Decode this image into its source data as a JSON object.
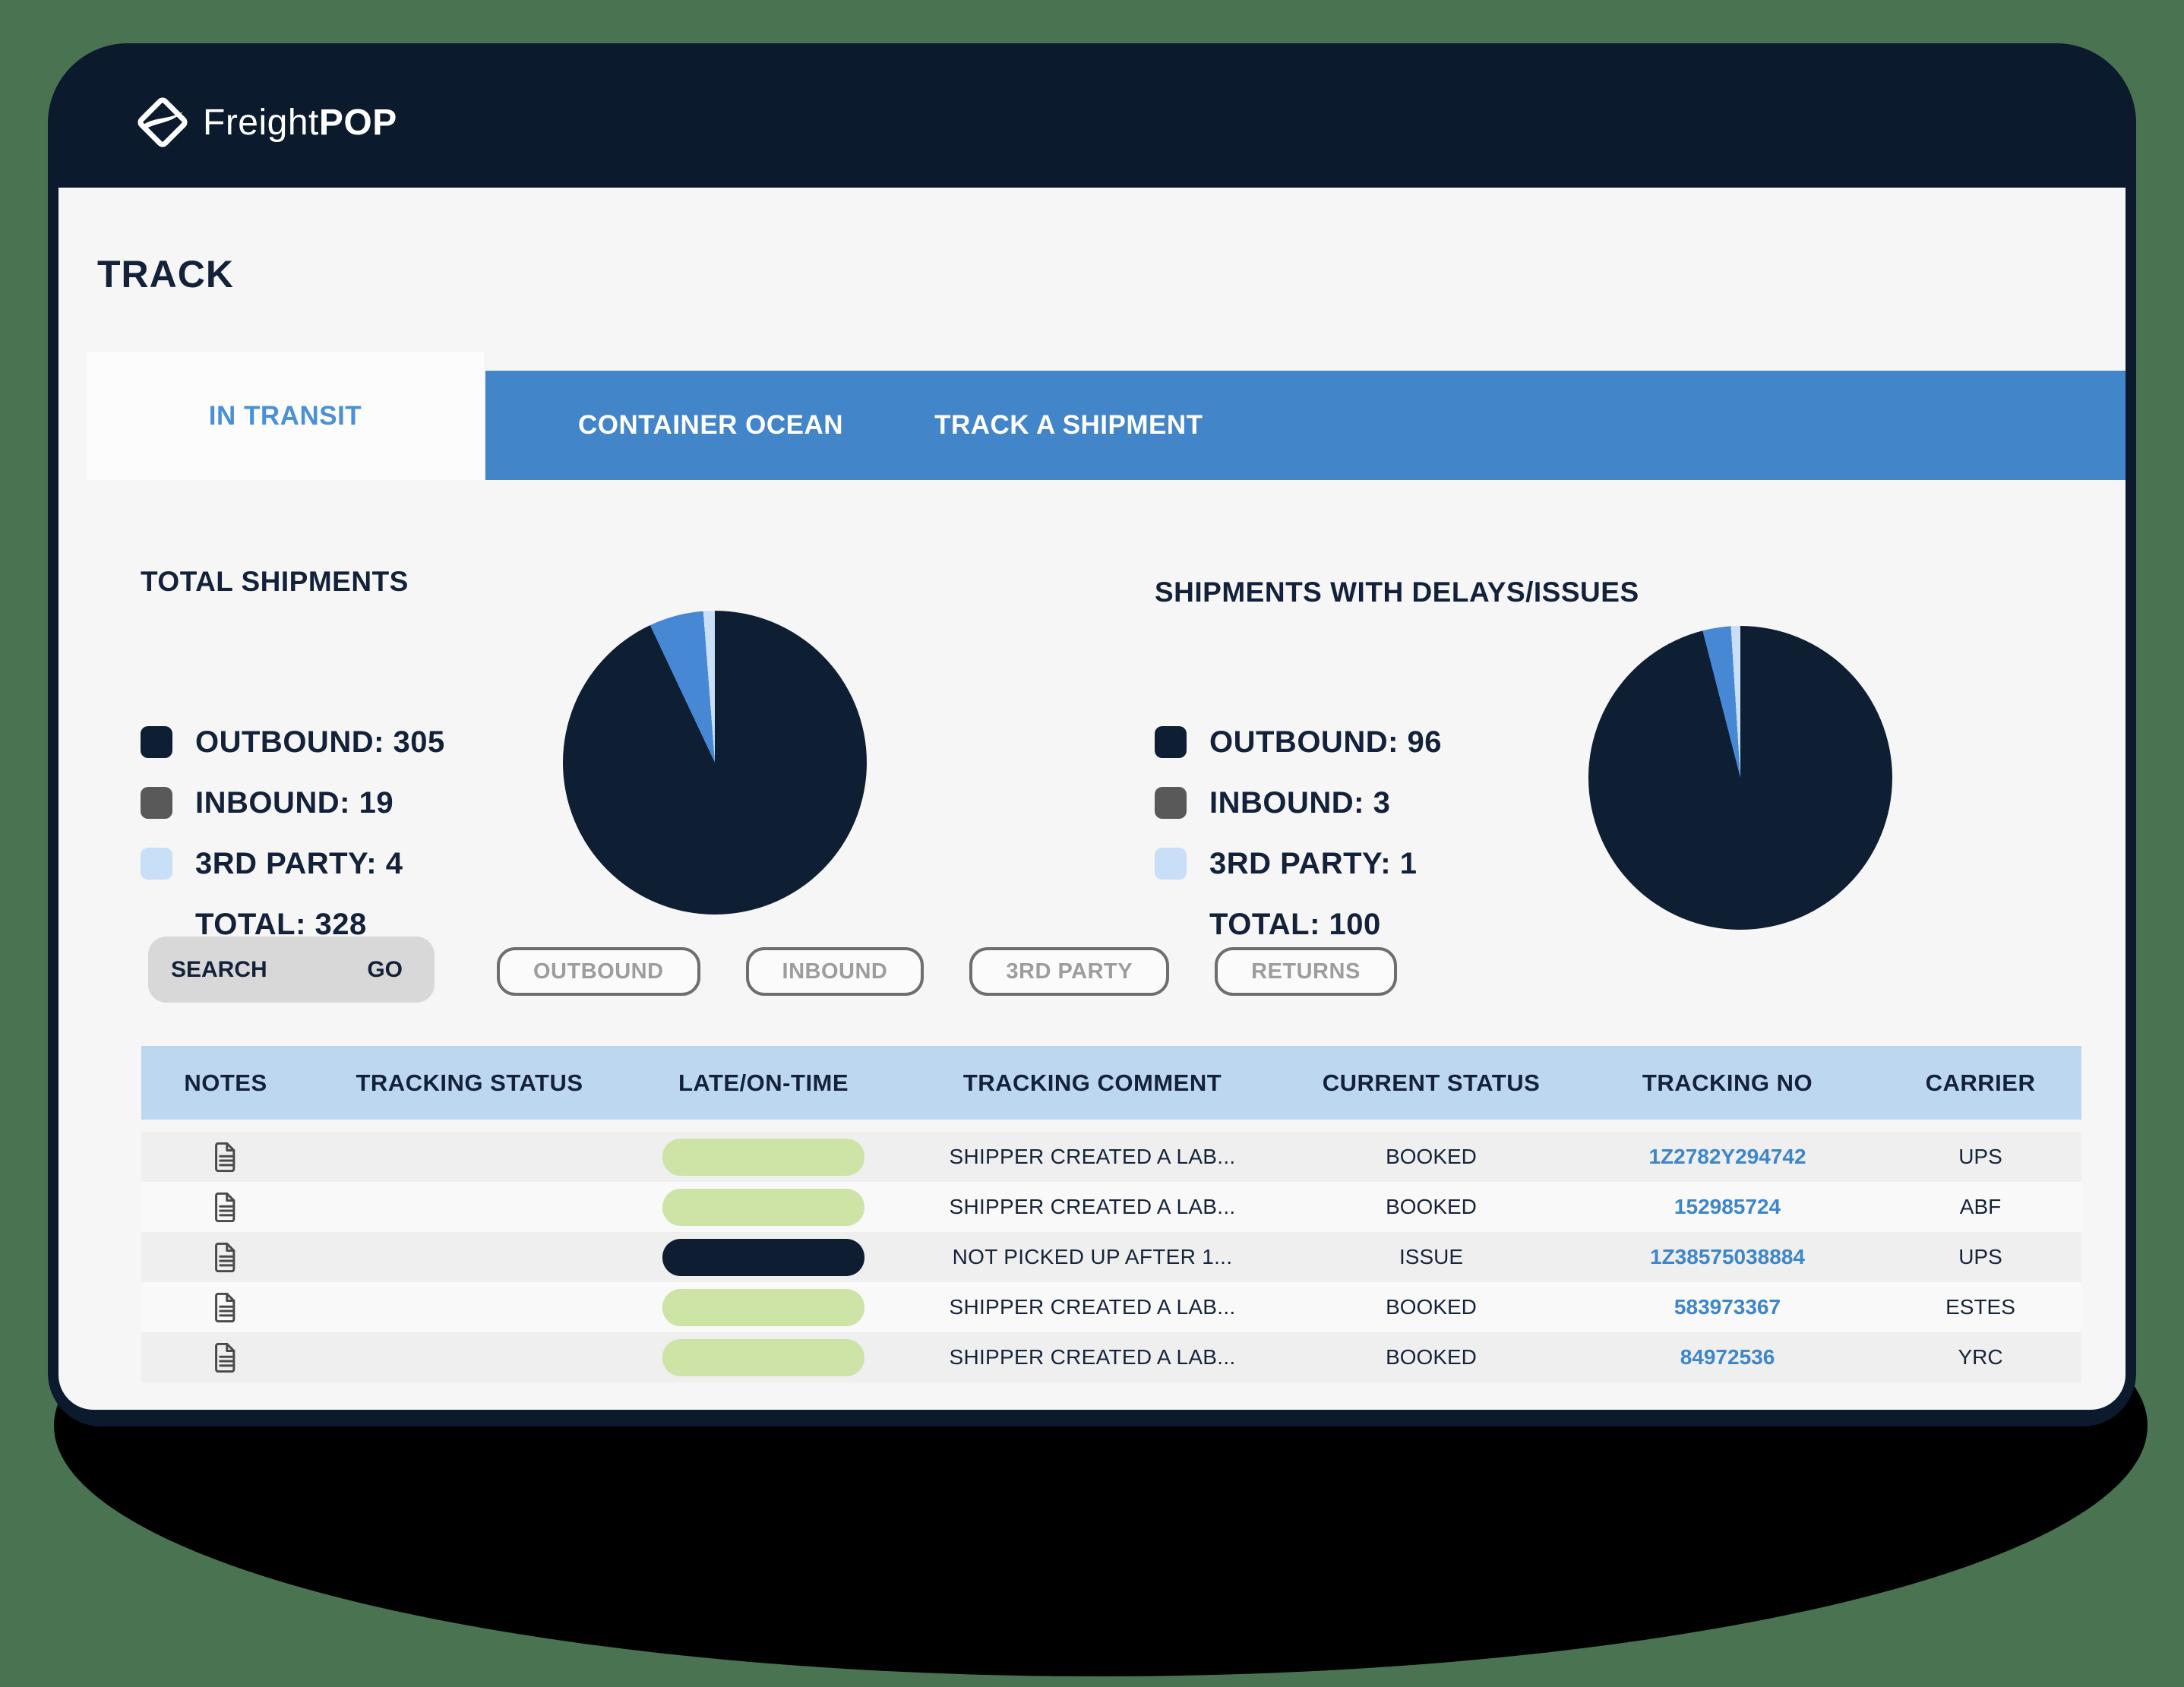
{
  "brand": {
    "logo_light": "Freight",
    "logo_bold": "POP"
  },
  "page_title": "TRACK",
  "tabs": {
    "in_transit": "IN TRANSIT",
    "container_ocean": "CONTAINER OCEAN",
    "track_a_shipment": "TRACK A SHIPMENT"
  },
  "colors": {
    "background_green": "#4a7351",
    "card_navy": "#0b1a2d",
    "tab_bar_blue": "#4285c8",
    "active_tab_text": "#4a90d9",
    "table_header_blue": "#bdd7f1",
    "link_blue": "#3e86c9",
    "ontime_green": "#cde4a6",
    "late_navy": "#0e1d31"
  },
  "chart_data": [
    {
      "type": "pie",
      "title": "TOTAL SHIPMENTS",
      "categories": [
        "OUTBOUND",
        "INBOUND",
        "3RD PARTY"
      ],
      "values": [
        305,
        19,
        4
      ],
      "total_label": "TOTAL",
      "total": 328,
      "slice_colors": [
        "#0f1f33",
        "#4788d4",
        "#c9def7"
      ],
      "legend_swatch_colors": [
        "#0f1f33",
        "#595959",
        "#c9def7"
      ],
      "legend_position": "left-of-pie"
    },
    {
      "type": "pie",
      "title": "SHIPMENTS WITH DELAYS/ISSUES",
      "categories": [
        "OUTBOUND",
        "INBOUND",
        "3RD PARTY"
      ],
      "values": [
        96,
        3,
        1
      ],
      "total_label": "TOTAL",
      "total": 100,
      "slice_colors": [
        "#0f1f33",
        "#4788d4",
        "#c9def7"
      ],
      "legend_swatch_colors": [
        "#0f1f33",
        "#595959",
        "#c9def7"
      ],
      "legend_position": "left-of-pie"
    }
  ],
  "search": {
    "label": "SEARCH",
    "go": "GO"
  },
  "filter_pills": [
    "OUTBOUND",
    "INBOUND",
    "3RD PARTY",
    "RETURNS"
  ],
  "table": {
    "columns": [
      "NOTES",
      "TRACKING STATUS",
      "LATE/ON-TIME",
      "TRACKING COMMENT",
      "CURRENT STATUS",
      "TRACKING NO",
      "CARRIER"
    ],
    "rows": [
      {
        "has_note": true,
        "tracking_status": "",
        "ontime": "on-time",
        "comment": "SHIPPER CREATED A LAB...",
        "status": "BOOKED",
        "tracking_no": "1Z2782Y294742",
        "carrier": "UPS"
      },
      {
        "has_note": true,
        "tracking_status": "",
        "ontime": "on-time",
        "comment": "SHIPPER CREATED A LAB...",
        "status": "BOOKED",
        "tracking_no": "152985724",
        "carrier": "ABF"
      },
      {
        "has_note": true,
        "tracking_status": "",
        "ontime": "late",
        "comment": "NOT PICKED UP AFTER 1...",
        "status": "ISSUE",
        "tracking_no": "1Z38575038884",
        "carrier": "UPS"
      },
      {
        "has_note": true,
        "tracking_status": "",
        "ontime": "on-time",
        "comment": "SHIPPER CREATED A LAB...",
        "status": "BOOKED",
        "tracking_no": "583973367",
        "carrier": "ESTES"
      },
      {
        "has_note": true,
        "tracking_status": "",
        "ontime": "on-time",
        "comment": "SHIPPER CREATED A LAB...",
        "status": "BOOKED",
        "tracking_no": "84972536",
        "carrier": "YRC"
      }
    ]
  }
}
